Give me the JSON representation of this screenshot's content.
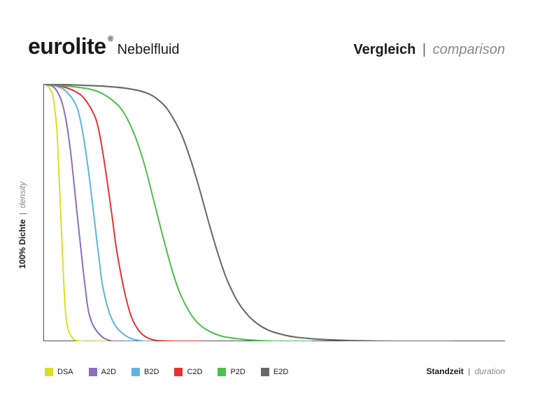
{
  "header": {
    "brand": "eurolite",
    "registered": "®",
    "subtitle": "Nebelfluid",
    "right_bold": "Vergleich",
    "right_sep": "|",
    "right_italic": "comparison"
  },
  "axes": {
    "y_bold": "100% Dichte",
    "y_sep": "|",
    "y_italic": "density",
    "x_bold": "Standzeit",
    "x_sep": "|",
    "x_italic": "duration",
    "axis_color": "#1a1a1a",
    "axis_width": 1.5
  },
  "chart": {
    "type": "line",
    "background_color": "#ffffff",
    "xlim": [
      0,
      100
    ],
    "ylim": [
      0,
      100
    ],
    "line_width": 2,
    "series": [
      {
        "id": "DSA",
        "color": "#d9e021",
        "points": [
          [
            0,
            100
          ],
          [
            1,
            99
          ],
          [
            2,
            96
          ],
          [
            2.5,
            90
          ],
          [
            3,
            80
          ],
          [
            3.5,
            60
          ],
          [
            4,
            40
          ],
          [
            4.5,
            20
          ],
          [
            5,
            8
          ],
          [
            6,
            2
          ],
          [
            8,
            0
          ],
          [
            14,
            0
          ]
        ]
      },
      {
        "id": "A2D",
        "color": "#8e6cc0",
        "points": [
          [
            0,
            100
          ],
          [
            2,
            99
          ],
          [
            3,
            97
          ],
          [
            4,
            93
          ],
          [
            5,
            85
          ],
          [
            6,
            72
          ],
          [
            7,
            55
          ],
          [
            8,
            38
          ],
          [
            9,
            22
          ],
          [
            10,
            10
          ],
          [
            12,
            3
          ],
          [
            15,
            0
          ],
          [
            20,
            0
          ]
        ]
      },
      {
        "id": "B2D",
        "color": "#5bb5e0",
        "points": [
          [
            0,
            100
          ],
          [
            3,
            99
          ],
          [
            5,
            97
          ],
          [
            7,
            92
          ],
          [
            8,
            86
          ],
          [
            9,
            76
          ],
          [
            10,
            63
          ],
          [
            11,
            48
          ],
          [
            12,
            33
          ],
          [
            13,
            20
          ],
          [
            15,
            8
          ],
          [
            18,
            2
          ],
          [
            22,
            0
          ],
          [
            28,
            0
          ]
        ]
      },
      {
        "id": "C2D",
        "color": "#e63232",
        "points": [
          [
            0,
            100
          ],
          [
            4,
            99
          ],
          [
            7,
            97
          ],
          [
            9,
            94
          ],
          [
            11,
            88
          ],
          [
            12,
            82
          ],
          [
            13,
            72
          ],
          [
            14,
            60
          ],
          [
            15,
            47
          ],
          [
            16,
            34
          ],
          [
            18,
            16
          ],
          [
            20,
            6
          ],
          [
            23,
            1
          ],
          [
            28,
            0
          ],
          [
            34,
            0
          ]
        ]
      },
      {
        "id": "P2D",
        "color": "#4cc04c",
        "points": [
          [
            0,
            100
          ],
          [
            6,
            99
          ],
          [
            10,
            98
          ],
          [
            13,
            96
          ],
          [
            16,
            92
          ],
          [
            18,
            87
          ],
          [
            20,
            79
          ],
          [
            22,
            68
          ],
          [
            24,
            54
          ],
          [
            26,
            40
          ],
          [
            28,
            27
          ],
          [
            30,
            17
          ],
          [
            33,
            8
          ],
          [
            37,
            3
          ],
          [
            42,
            1
          ],
          [
            50,
            0
          ],
          [
            58,
            0
          ]
        ]
      },
      {
        "id": "E2D",
        "color": "#666666",
        "points": [
          [
            0,
            100
          ],
          [
            8,
            99.5
          ],
          [
            14,
            99
          ],
          [
            19,
            98
          ],
          [
            23,
            96
          ],
          [
            26,
            92
          ],
          [
            28,
            87
          ],
          [
            30,
            80
          ],
          [
            32,
            70
          ],
          [
            34,
            58
          ],
          [
            36,
            45
          ],
          [
            38,
            33
          ],
          [
            40,
            23
          ],
          [
            43,
            13
          ],
          [
            47,
            6
          ],
          [
            52,
            2.5
          ],
          [
            58,
            1
          ],
          [
            66,
            0.3
          ],
          [
            76,
            0
          ],
          [
            88,
            0
          ]
        ]
      }
    ]
  },
  "legend": {
    "items": [
      {
        "label": "DSA",
        "color": "#d9e021"
      },
      {
        "label": "A2D",
        "color": "#8e6cc0"
      },
      {
        "label": "B2D",
        "color": "#5bb5e0"
      },
      {
        "label": "C2D",
        "color": "#e63232"
      },
      {
        "label": "P2D",
        "color": "#4cc04c"
      },
      {
        "label": "E2D",
        "color": "#666666"
      }
    ],
    "label_fontsize": 11
  }
}
